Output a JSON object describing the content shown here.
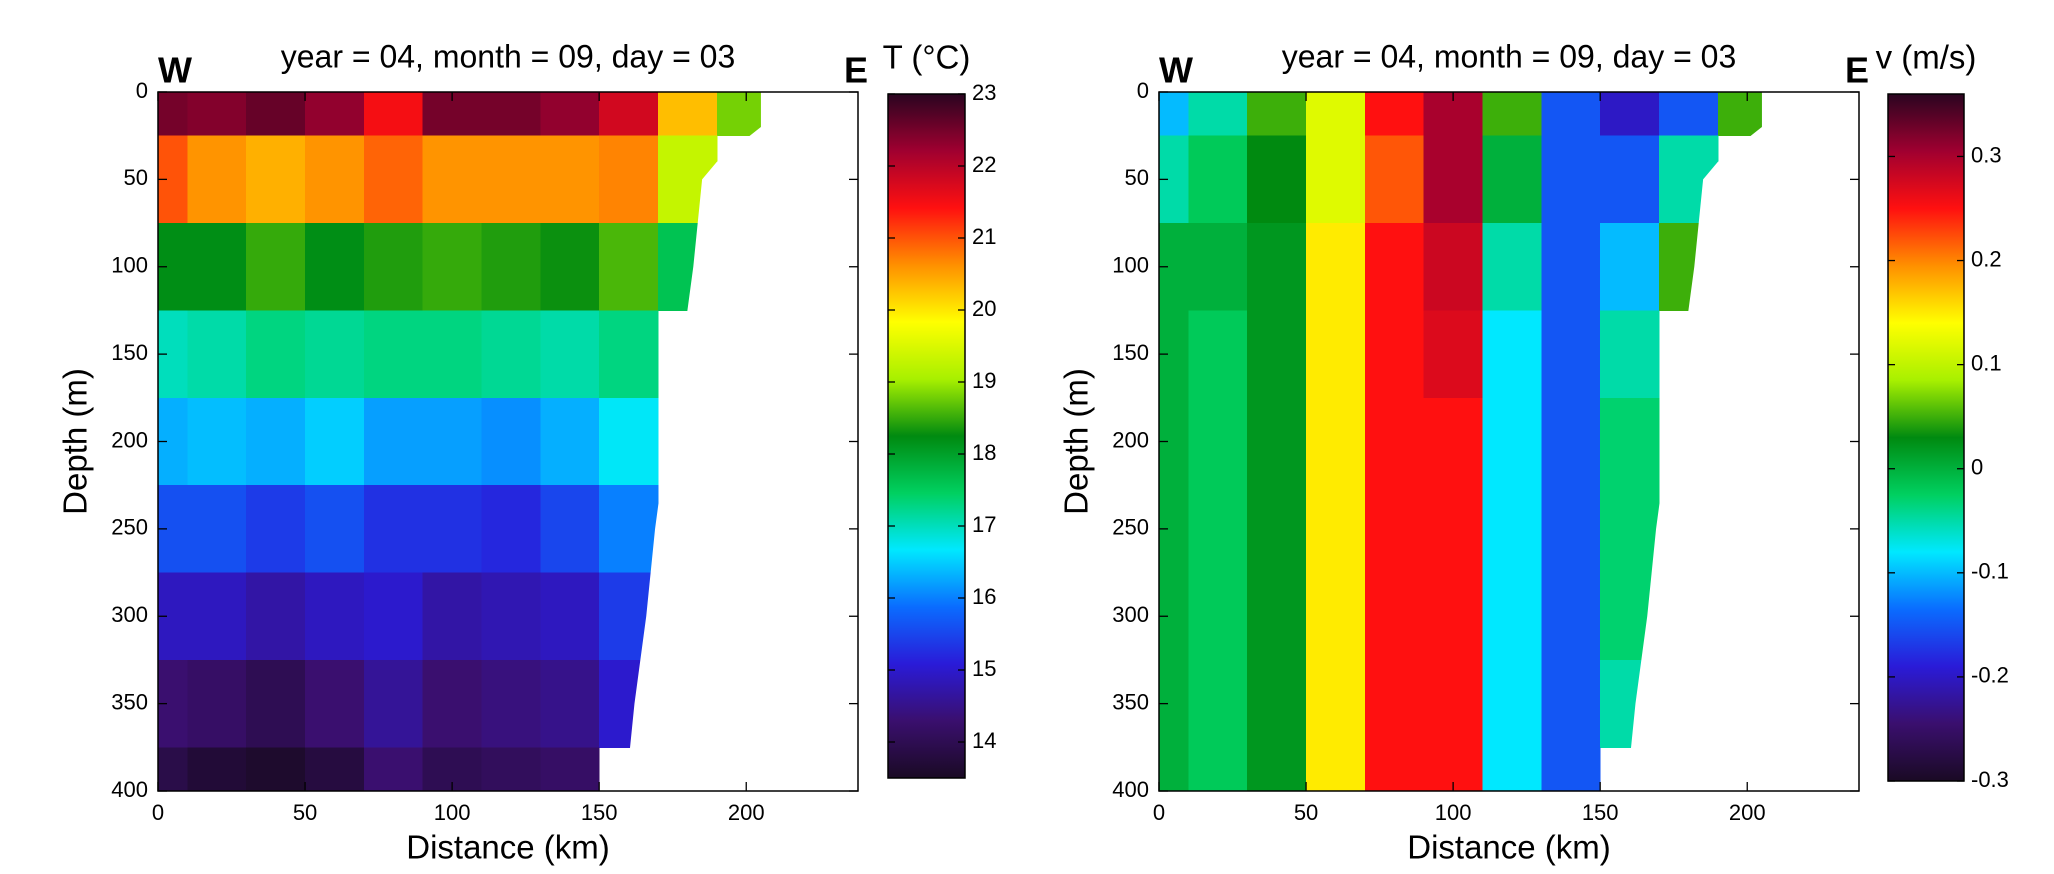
{
  "chart_data": [
    {
      "type": "contour",
      "title": "year = 04, month = 09, day = 03",
      "xlabel": "Distance (km)",
      "ylabel": "Depth (m)",
      "annotations": [
        "W",
        "E"
      ],
      "colorbar_label": "T (°C)",
      "x": [
        0,
        20,
        40,
        60,
        80,
        100,
        120,
        140,
        160,
        180,
        200
      ],
      "y": [
        0,
        50,
        100,
        150,
        200,
        250,
        300,
        350,
        400
      ],
      "z": [
        [
          22.5,
          22.4,
          22.6,
          22.3,
          21.5,
          22.5,
          22.5,
          22.3,
          21.8,
          20.3,
          18.8
        ],
        [
          21,
          20.6,
          20.4,
          20.6,
          20.9,
          20.6,
          20.6,
          20.6,
          20.7,
          19.3,
          null
        ],
        [
          18.2,
          18.2,
          18.5,
          18.2,
          18.4,
          18.5,
          18.4,
          18.3,
          18.6,
          17.6,
          null
        ],
        [
          17,
          17.1,
          17.3,
          17.2,
          17.3,
          17.3,
          17.2,
          17.1,
          17.3,
          null,
          null
        ],
        [
          16.3,
          16.4,
          16.3,
          16.5,
          16.2,
          16.2,
          16.1,
          16.3,
          16.7,
          null,
          null
        ],
        [
          15.6,
          15.6,
          15.4,
          15.6,
          15.3,
          15.3,
          15.2,
          15.5,
          16,
          null,
          null
        ],
        [
          14.9,
          14.9,
          14.7,
          14.9,
          15,
          14.7,
          14.8,
          14.9,
          15.4,
          null,
          null
        ],
        [
          14.3,
          14.2,
          14,
          14.3,
          14.6,
          14.3,
          14.4,
          14.5,
          15,
          null,
          null
        ],
        [
          13.9,
          13.7,
          13.6,
          13.8,
          14.3,
          14,
          14.1,
          14.2,
          null,
          null,
          null
        ]
      ],
      "clim": [
        13.5,
        23
      ],
      "cticks": [
        14,
        15,
        16,
        17,
        18,
        19,
        20,
        21,
        22,
        23
      ],
      "xlim": [
        0,
        238
      ],
      "xticks": [
        0,
        50,
        100,
        150,
        200
      ],
      "ylim": [
        0,
        400
      ],
      "yticks": [
        0,
        50,
        100,
        150,
        200,
        250,
        300,
        350,
        400
      ],
      "y_reversed": true,
      "seafloor_x": [
        205,
        205,
        190,
        185,
        182,
        178,
        173,
        169,
        166,
        162,
        159
      ],
      "seafloor_depth": [
        0,
        20,
        40,
        50,
        100,
        150,
        200,
        250,
        300,
        350,
        400
      ],
      "colormap": [
        "#1a0a24",
        "#3a0f6e",
        "#2a1bd8",
        "#0a6cff",
        "#00e8ff",
        "#00d060",
        "#008a10",
        "#a8f000",
        "#ffff00",
        "#ff9000",
        "#ff1010",
        "#a00030",
        "#2a0520"
      ]
    },
    {
      "type": "contour",
      "title": "year = 04, month = 09, day = 03",
      "xlabel": "Distance (km)",
      "ylabel": "Depth (m)",
      "annotations": [
        "W",
        "E"
      ],
      "colorbar_label": "v (m/s)",
      "x": [
        0,
        20,
        40,
        60,
        80,
        100,
        120,
        140,
        160,
        180,
        200
      ],
      "y": [
        0,
        50,
        100,
        150,
        200,
        250,
        300,
        350,
        400
      ],
      "z": [
        [
          -0.1,
          -0.05,
          0.05,
          0.12,
          0.25,
          0.3,
          0.05,
          -0.15,
          -0.2,
          -0.15,
          0.05
        ],
        [
          -0.05,
          -0.02,
          0.03,
          0.12,
          0.22,
          0.3,
          0,
          -0.15,
          -0.15,
          -0.05,
          null
        ],
        [
          0,
          0,
          0.02,
          0.15,
          0.25,
          0.28,
          -0.05,
          -0.15,
          -0.1,
          0.05,
          null
        ],
        [
          0,
          -0.02,
          0.02,
          0.15,
          0.25,
          0.27,
          -0.08,
          -0.15,
          -0.05,
          null,
          null
        ],
        [
          0,
          -0.02,
          0.02,
          0.15,
          0.25,
          0.25,
          -0.08,
          -0.15,
          -0.03,
          null,
          null
        ],
        [
          0,
          -0.02,
          0.02,
          0.15,
          0.25,
          0.25,
          -0.08,
          -0.15,
          -0.03,
          null,
          null
        ],
        [
          0,
          -0.02,
          0.02,
          0.15,
          0.25,
          0.25,
          -0.08,
          -0.15,
          -0.03,
          null,
          null
        ],
        [
          0,
          -0.02,
          0.02,
          0.15,
          0.25,
          0.25,
          -0.08,
          -0.15,
          -0.05,
          null,
          null
        ],
        [
          0,
          -0.02,
          0.02,
          0.15,
          0.25,
          0.25,
          -0.08,
          -0.15,
          null,
          null,
          null
        ]
      ],
      "clim": [
        -0.3,
        0.36
      ],
      "cticks": [
        -0.3,
        -0.2,
        -0.1,
        0,
        0.1,
        0.2,
        0.3
      ],
      "xlim": [
        0,
        238
      ],
      "xticks": [
        0,
        50,
        100,
        150,
        200
      ],
      "ylim": [
        0,
        400
      ],
      "yticks": [
        0,
        50,
        100,
        150,
        200,
        250,
        300,
        350,
        400
      ],
      "y_reversed": true,
      "seafloor_x": [
        205,
        205,
        190,
        185,
        182,
        178,
        173,
        169,
        166,
        162,
        159
      ],
      "seafloor_depth": [
        0,
        20,
        40,
        50,
        100,
        150,
        200,
        250,
        300,
        350,
        400
      ],
      "colormap": [
        "#1a0a24",
        "#3a0f6e",
        "#2a1bd8",
        "#0a6cff",
        "#00e8ff",
        "#00d060",
        "#008a10",
        "#a8f000",
        "#ffff00",
        "#ff9000",
        "#ff1010",
        "#a00030",
        "#2a0520"
      ]
    }
  ]
}
